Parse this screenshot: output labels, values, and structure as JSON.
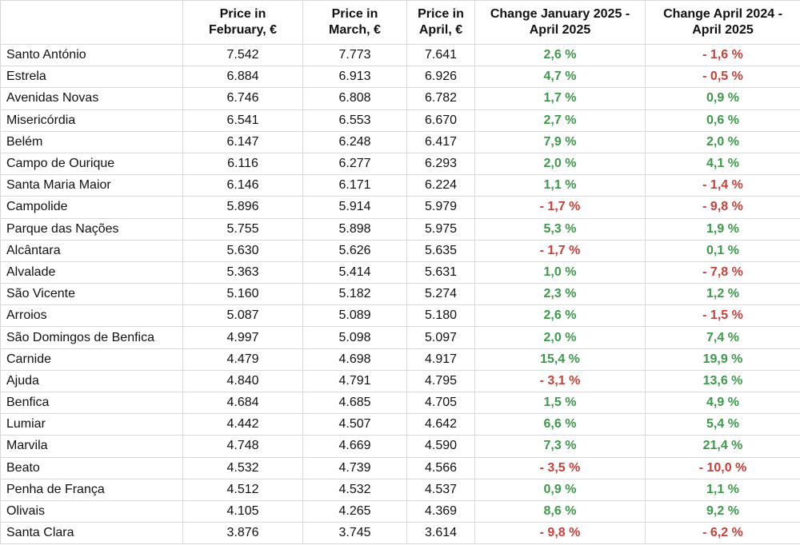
{
  "table": {
    "header": [
      [],
      [
        "Price in",
        "February, €"
      ],
      [
        "Price in",
        "March, €"
      ],
      [
        "Price in",
        "April, €"
      ],
      [
        "Change January 2025 -",
        "April 2025"
      ],
      [
        "Change April 2024 -",
        "April 2025"
      ]
    ],
    "rows": [
      [
        "Santo António",
        "7.542",
        "7.773",
        "7.641",
        "2,6 %",
        "- 1,6 %"
      ],
      [
        "Estrela",
        "6.884",
        "6.913",
        "6.926",
        "4,7 %",
        "- 0,5 %"
      ],
      [
        "Avenidas Novas",
        "6.746",
        "6.808",
        "6.782",
        "1,7 %",
        "0,9 %"
      ],
      [
        "Misericórdia",
        "6.541",
        "6.553",
        "6.670",
        "2,7 %",
        "0,6 %"
      ],
      [
        "Belém",
        "6.147",
        "6.248",
        "6.417",
        "7,9 %",
        "2,0 %"
      ],
      [
        "Campo de Ourique",
        "6.116",
        "6.277",
        "6.293",
        "2,0 %",
        "4,1 %"
      ],
      [
        "Santa Maria Maior",
        "6.146",
        "6.171",
        "6.224",
        "1,1 %",
        "- 1,4 %"
      ],
      [
        "Campolide",
        "5.896",
        "5.914",
        "5.979",
        "- 1,7 %",
        "- 9,8 %"
      ],
      [
        "Parque das Nações",
        "5.755",
        "5.898",
        "5.975",
        "5,3 %",
        "1,9 %"
      ],
      [
        "Alcântara",
        "5.630",
        "5.626",
        "5.635",
        "- 1,7 %",
        "0,1 %"
      ],
      [
        "Alvalade",
        "5.363",
        "5.414",
        "5.631",
        "1,0 %",
        "- 7,8 %"
      ],
      [
        "São Vicente",
        "5.160",
        "5.182",
        "5.274",
        "2,3 %",
        "1,2 %"
      ],
      [
        "Arroios",
        "5.087",
        "5.089",
        "5.180",
        "2,6 %",
        "- 1,5 %"
      ],
      [
        "São Domingos de Benfica",
        "4.997",
        "5.098",
        "5.097",
        "2,0 %",
        "7,4 %"
      ],
      [
        "Carnide",
        "4.479",
        "4.698",
        "4.917",
        "15,4 %",
        "19,9 %"
      ],
      [
        "Ajuda",
        "4.840",
        "4.791",
        "4.795",
        "- 3,1 %",
        "13,6 %"
      ],
      [
        "Benfica",
        "4.684",
        "4.685",
        "4.705",
        "1,5 %",
        "4,9 %"
      ],
      [
        "Lumiar",
        "4.442",
        "4.507",
        "4.642",
        "6,6 %",
        "5,4 %"
      ],
      [
        "Marvila",
        "4.748",
        "4.669",
        "4.590",
        "7,3 %",
        "21,4 %"
      ],
      [
        "Beato",
        "4.532",
        "4.739",
        "4.566",
        "- 3,5 %",
        "- 10,0 %"
      ],
      [
        "Penha de França",
        "4.512",
        "4.532",
        "4.537",
        "0,9 %",
        "1,1 %"
      ],
      [
        "Olivais",
        "4.105",
        "4.265",
        "4.369",
        "8,6 %",
        "9,2 %"
      ],
      [
        "Santa Clara",
        "3.876",
        "3.745",
        "3.614",
        "- 9,8 %",
        "- 6,2 %"
      ]
    ]
  }
}
